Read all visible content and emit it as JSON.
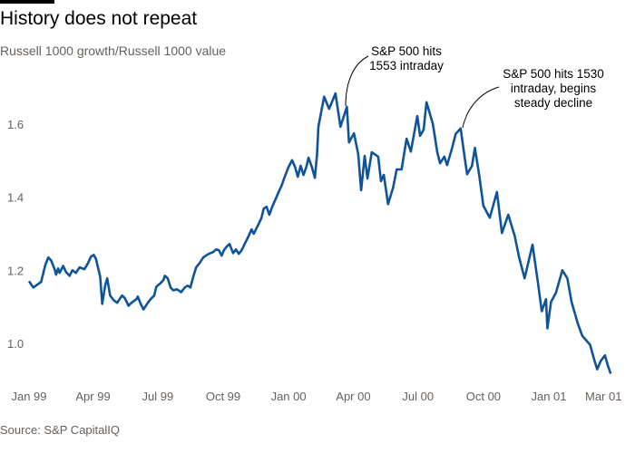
{
  "title": "History does not repeat",
  "subtitle": "Russell 1000 growth/Russell 1000 value",
  "source": "Source: S&P CapitalIQ",
  "colors": {
    "line": "#0f5499",
    "text": "#000000",
    "muted": "#66605c"
  },
  "chart_data": {
    "type": "line",
    "title": "History does not repeat",
    "subtitle": "Russell 1000 growth/Russell 1000 value",
    "xlabel": "",
    "ylabel": "",
    "ylim": [
      0.9,
      1.7
    ],
    "grid": false,
    "yticks": [
      {
        "value": 1.0,
        "label": "1.0"
      },
      {
        "value": 1.2,
        "label": "1.2"
      },
      {
        "value": 1.4,
        "label": "1.4"
      },
      {
        "value": 1.6,
        "label": "1.6"
      }
    ],
    "xticks": [
      {
        "date": "1999-01-01",
        "label": "Jan 99"
      },
      {
        "date": "1999-04-01",
        "label": "Apr 99"
      },
      {
        "date": "1999-07-01",
        "label": "Jul 99"
      },
      {
        "date": "1999-10-01",
        "label": "Oct 99"
      },
      {
        "date": "2000-01-01",
        "label": "Jan 00"
      },
      {
        "date": "2000-04-01",
        "label": "Apr 00"
      },
      {
        "date": "2000-07-01",
        "label": "Jul 00"
      },
      {
        "date": "2000-10-01",
        "label": "Oct 00"
      },
      {
        "date": "2001-01-01",
        "label": "Jan 01"
      },
      {
        "date": "2001-03-01",
        "label": "Mar 01"
      }
    ],
    "annotations": [
      {
        "lines": [
          "S&P 500 hits",
          "1553 intraday"
        ],
        "date": "2000-03-14"
      },
      {
        "lines": [
          "S&P 500 hits 1530",
          "intraday, begins",
          "steady decline"
        ],
        "date": "2000-08-30"
      }
    ],
    "series": [
      {
        "x": [
          "1999-01-01",
          "1999-01-07",
          "1999-01-18",
          "1999-01-24",
          "1999-01-28",
          "1999-02-01",
          "1999-02-06",
          "1999-02-08",
          "1999-02-11",
          "1999-02-13",
          "1999-02-18",
          "1999-02-22",
          "1999-02-27",
          "1999-03-03",
          "1999-03-08",
          "1999-03-13",
          "1999-03-20",
          "1999-03-25",
          "1999-03-29",
          "1999-04-02",
          "1999-04-05",
          "1999-04-11",
          "1999-04-14",
          "1999-04-18",
          "1999-04-21",
          "1999-04-25",
          "1999-04-30",
          "1999-05-05",
          "1999-05-09",
          "1999-05-12",
          "1999-05-16",
          "1999-05-21",
          "1999-05-25",
          "1999-06-01",
          "1999-06-03",
          "1999-06-07",
          "1999-06-11",
          "1999-06-16",
          "1999-06-21",
          "1999-06-26",
          "1999-06-29",
          "1999-07-04",
          "1999-07-09",
          "1999-07-11",
          "1999-07-15",
          "1999-07-19",
          "1999-07-23",
          "1999-07-28",
          "1999-08-03",
          "1999-08-08",
          "1999-08-12",
          "1999-08-16",
          "1999-08-20",
          "1999-08-24",
          "1999-08-29",
          "1999-09-03",
          "1999-09-08",
          "1999-09-13",
          "1999-09-17",
          "1999-09-21",
          "1999-09-25",
          "1999-09-29",
          "1999-10-02",
          "1999-10-06",
          "1999-10-10",
          "1999-10-15",
          "1999-10-19",
          "1999-10-23",
          "1999-10-27",
          "1999-11-01",
          "1999-11-05",
          "1999-11-10",
          "1999-11-13",
          "1999-11-20",
          "1999-11-24",
          "1999-11-27",
          "1999-12-01",
          "1999-12-05",
          "1999-12-09",
          "1999-12-14",
          "1999-12-18",
          "1999-12-22",
          "1999-12-27",
          "2000-01-01",
          "2000-01-06",
          "2000-01-10",
          "2000-01-14",
          "2000-01-18",
          "2000-01-22",
          "2000-01-26",
          "2000-01-29",
          "2000-02-03",
          "2000-02-07",
          "2000-02-10",
          "2000-02-12",
          "2000-02-20",
          "2000-02-27",
          "2000-03-07",
          "2000-03-14",
          "2000-03-23",
          "2000-03-26",
          "2000-04-02",
          "2000-04-08",
          "2000-04-12",
          "2000-04-17",
          "2000-04-21",
          "2000-04-27",
          "2000-05-06",
          "2000-05-10",
          "2000-05-14",
          "2000-05-20",
          "2000-05-27",
          "2000-06-01",
          "2000-06-08",
          "2000-06-15",
          "2000-06-21",
          "2000-06-30",
          "2000-07-04",
          "2000-07-09",
          "2000-07-13",
          "2000-07-22",
          "2000-07-28",
          "2000-08-01",
          "2000-08-07",
          "2000-08-11",
          "2000-08-18",
          "2000-08-23",
          "2000-08-30",
          "2000-09-04",
          "2000-09-08",
          "2000-09-15",
          "2000-09-19",
          "2000-09-25",
          "2000-10-01",
          "2000-10-10",
          "2000-10-20",
          "2000-10-27",
          "2000-11-05",
          "2000-11-14",
          "2000-11-20",
          "2000-11-28",
          "2000-12-09",
          "2000-12-17",
          "2000-12-22",
          "2000-12-28",
          "2000-12-30",
          "2001-01-04",
          "2001-01-11",
          "2001-01-20",
          "2001-01-27",
          "2001-02-02",
          "2001-02-11",
          "2001-02-17",
          "2001-02-28",
          "2001-03-06",
          "2001-03-10",
          "2001-03-15",
          "2001-03-21",
          "2001-03-25",
          "2001-03-29"
        ],
        "y": [
          1.17,
          1.153,
          1.168,
          1.215,
          1.235,
          1.227,
          1.203,
          1.188,
          1.205,
          1.193,
          1.212,
          1.195,
          1.185,
          1.2,
          1.193,
          1.208,
          1.203,
          1.22,
          1.237,
          1.242,
          1.232,
          1.183,
          1.108,
          1.158,
          1.178,
          1.131,
          1.118,
          1.111,
          1.123,
          1.131,
          1.123,
          1.103,
          1.111,
          1.121,
          1.128,
          1.108,
          1.093,
          1.108,
          1.121,
          1.131,
          1.155,
          1.163,
          1.173,
          1.185,
          1.178,
          1.153,
          1.145,
          1.148,
          1.14,
          1.153,
          1.158,
          1.153,
          1.183,
          1.208,
          1.22,
          1.235,
          1.242,
          1.247,
          1.25,
          1.257,
          1.255,
          1.24,
          1.255,
          1.265,
          1.272,
          1.247,
          1.257,
          1.245,
          1.255,
          1.275,
          1.29,
          1.312,
          1.3,
          1.327,
          1.344,
          1.369,
          1.374,
          1.352,
          1.374,
          1.396,
          1.414,
          1.431,
          1.458,
          1.483,
          1.501,
          1.483,
          1.456,
          1.486,
          1.461,
          1.483,
          1.508,
          1.481,
          1.453,
          1.518,
          1.593,
          1.675,
          1.642,
          1.684,
          1.593,
          1.647,
          1.55,
          1.575,
          1.518,
          1.419,
          1.513,
          1.451,
          1.523,
          1.511,
          1.444,
          1.461,
          1.381,
          1.426,
          1.476,
          1.476,
          1.56,
          1.525,
          1.622,
          1.568,
          1.585,
          1.66,
          1.6,
          1.525,
          1.493,
          1.511,
          1.488,
          1.535,
          1.573,
          1.588,
          1.518,
          1.463,
          1.486,
          1.535,
          1.461,
          1.376,
          1.344,
          1.414,
          1.302,
          1.352,
          1.294,
          1.237,
          1.178,
          1.27,
          1.163,
          1.088,
          1.121,
          1.041,
          1.113,
          1.138,
          1.2,
          1.178,
          1.113,
          1.053,
          1.021,
          0.996,
          0.954,
          0.929,
          0.952,
          0.967,
          0.939,
          0.917
        ]
      }
    ]
  }
}
